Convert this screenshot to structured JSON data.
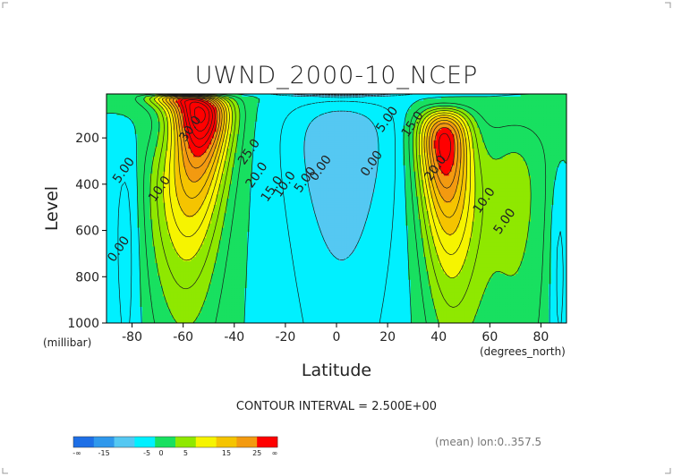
{
  "chart_data": {
    "type": "heatmap",
    "subtype": "filled-contour",
    "title": "UWND_2000-10_NCEP",
    "xlabel": "Latitude",
    "ylabel": "Level",
    "x_unit": "(degrees_north)",
    "y_unit": "(millibar)",
    "xlim": [
      -90,
      90
    ],
    "ylim": [
      1000,
      10
    ],
    "y_axis_inverted": true,
    "x_ticks": [
      -80,
      -60,
      -40,
      -20,
      0,
      20,
      40,
      60,
      80
    ],
    "y_ticks": [
      200,
      400,
      600,
      800,
      1000
    ],
    "contour_interval_text": "CONTOUR INTERVAL = 2.500E+00",
    "info_text": "(mean) lon:0..357.5",
    "colorbar": {
      "colors": [
        "#1e6fe6",
        "#2f98ec",
        "#55c8f2",
        "#00f0ff",
        "#18e060",
        "#8fe800",
        "#f6f400",
        "#f5c400",
        "#f39a10",
        "#ff0000"
      ],
      "labels": [
        "-∞",
        "-15",
        "-5",
        "0",
        "5",
        "15",
        "25",
        "∞"
      ]
    },
    "contour_labels": [
      {
        "text": "30.0",
        "lat": -56,
        "lev": 170
      },
      {
        "text": "25.0",
        "lat": -33,
        "lev": 270
      },
      {
        "text": "20.0",
        "lat": -30,
        "lev": 370
      },
      {
        "text": "15.0",
        "lat": -24,
        "lev": 430
      },
      {
        "text": "10.0",
        "lat": -19,
        "lev": 410
      },
      {
        "text": "5.00",
        "lat": -11,
        "lev": 390
      },
      {
        "text": "0.00",
        "lat": -5,
        "lev": 340
      },
      {
        "text": "5.00",
        "lat": -82,
        "lev": 350
      },
      {
        "text": "10.0",
        "lat": -68,
        "lev": 430
      },
      {
        "text": "0.00",
        "lat": -84,
        "lev": 690
      },
      {
        "text": "0.00",
        "lat": 15,
        "lev": 320
      },
      {
        "text": "5.00",
        "lat": 21,
        "lev": 130
      },
      {
        "text": "15.0",
        "lat": 31,
        "lev": 150
      },
      {
        "text": "20.0",
        "lat": 40,
        "lev": 340
      },
      {
        "text": "10.0",
        "lat": 59,
        "lev": 480
      },
      {
        "text": "5.00",
        "lat": 67,
        "lev": 570
      }
    ]
  }
}
